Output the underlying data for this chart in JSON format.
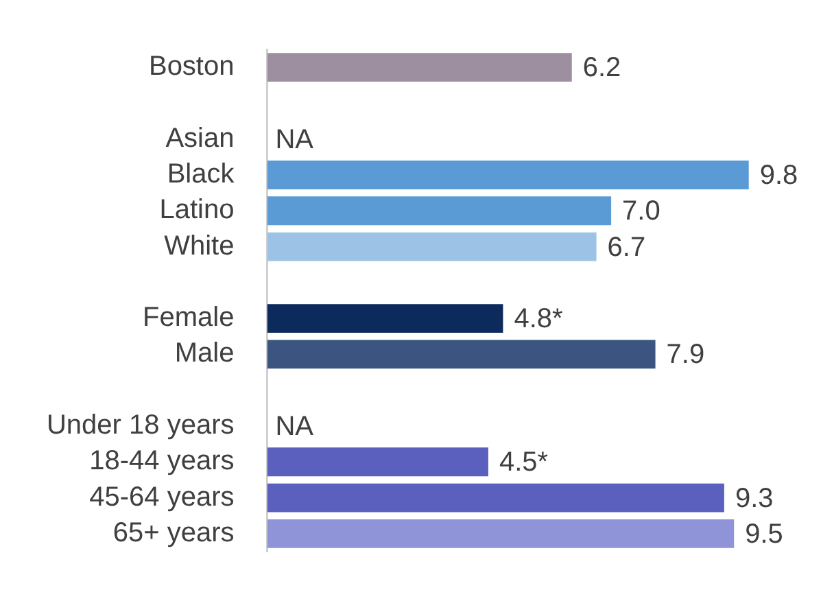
{
  "chart_data": {
    "type": "bar",
    "orientation": "horizontal",
    "categories": [
      "Boston",
      null,
      "Asian",
      "Black",
      "Latino",
      "White",
      null,
      "Female",
      "Male",
      null,
      "Under 18 years",
      "18-44 years",
      "45-64 years",
      "65+ years"
    ],
    "values": [
      6.2,
      null,
      null,
      9.8,
      7.0,
      6.7,
      null,
      4.8,
      7.9,
      null,
      null,
      4.5,
      9.3,
      9.5
    ],
    "colors": [
      "#9e8fa0",
      "#ffffff",
      "#5b9bd5",
      "#5b9bd5",
      "#5b9bd5",
      "#9cc3e6",
      "#ffffff",
      "#0d2a5c",
      "#3b5580",
      "#ffffff",
      "#5b5fbd",
      "#5b5fbd",
      "#5b5fbd",
      "#8f93d8"
    ],
    "value_labels": [
      "6.2",
      null,
      "NA",
      "9.8",
      "7.0",
      "6.7",
      null,
      "4.8*",
      "7.9",
      null,
      "NA",
      "4.5*",
      "9.3",
      "9.5"
    ],
    "tick_labels": "y",
    "grid": false,
    "legend": false
  }
}
